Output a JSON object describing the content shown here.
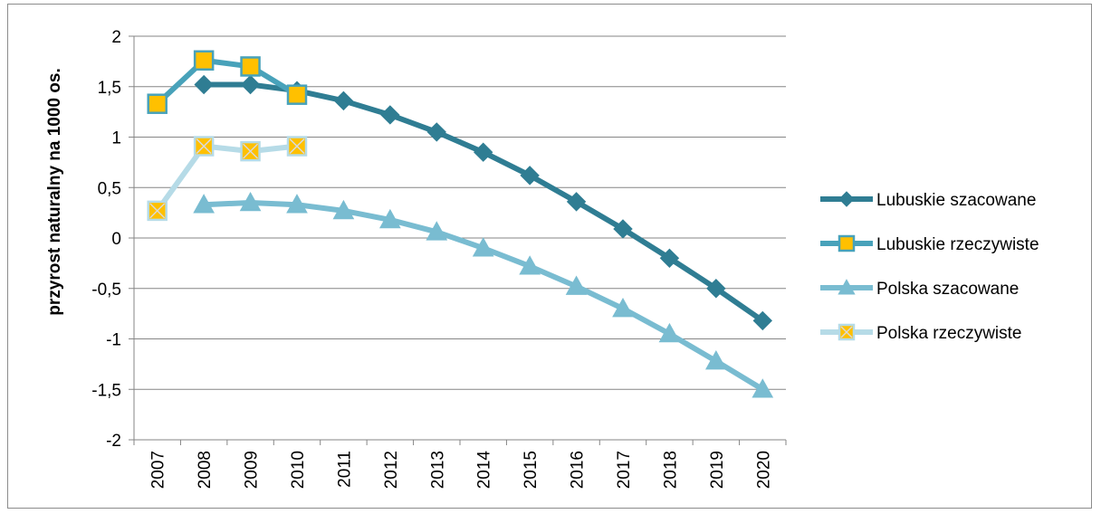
{
  "chart_data": {
    "type": "line",
    "title": "",
    "xlabel": "",
    "ylabel": "przyrost naturalny na 1000 os.",
    "ylim": [
      -2,
      2
    ],
    "yticks": [
      2,
      1.5,
      1,
      0.5,
      0,
      -0.5,
      -1,
      -1.5,
      -2
    ],
    "ytick_labels": [
      "2",
      "1,5",
      "1",
      "0,5",
      "0",
      "-0,5",
      "-1",
      "-1,5",
      "-2"
    ],
    "categories": [
      "2007",
      "2008",
      "2009",
      "2010",
      "2011",
      "2012",
      "2013",
      "2014",
      "2015",
      "2016",
      "2017",
      "2018",
      "2019",
      "2020"
    ],
    "grid": "horizontal",
    "legend_position": "right",
    "series": [
      {
        "name": "Lubuskie szacowane",
        "marker": "diamond",
        "color": "#2f7d93",
        "values": [
          null,
          1.52,
          1.52,
          1.46,
          1.36,
          1.22,
          1.05,
          0.85,
          0.62,
          0.36,
          0.09,
          -0.2,
          -0.5,
          -0.82
        ]
      },
      {
        "name": "Lubuskie rzeczywiste",
        "marker": "square",
        "color": "#48a2ba",
        "marker_fill": "#ffc000",
        "values": [
          1.33,
          1.76,
          1.7,
          1.42,
          null,
          null,
          null,
          null,
          null,
          null,
          null,
          null,
          null,
          null
        ]
      },
      {
        "name": "Polska szacowane",
        "marker": "triangle",
        "color": "#79bcd1",
        "values": [
          null,
          0.33,
          0.35,
          0.33,
          0.27,
          0.18,
          0.06,
          -0.1,
          -0.28,
          -0.48,
          -0.7,
          -0.95,
          -1.22,
          -1.5
        ]
      },
      {
        "name": "Polska rzeczywiste",
        "marker": "square-x",
        "color": "#b6dbe7",
        "marker_fill": "#ffc000",
        "values": [
          0.27,
          0.91,
          0.86,
          0.91,
          null,
          null,
          null,
          null,
          null,
          null,
          null,
          null,
          null,
          null
        ]
      }
    ]
  }
}
